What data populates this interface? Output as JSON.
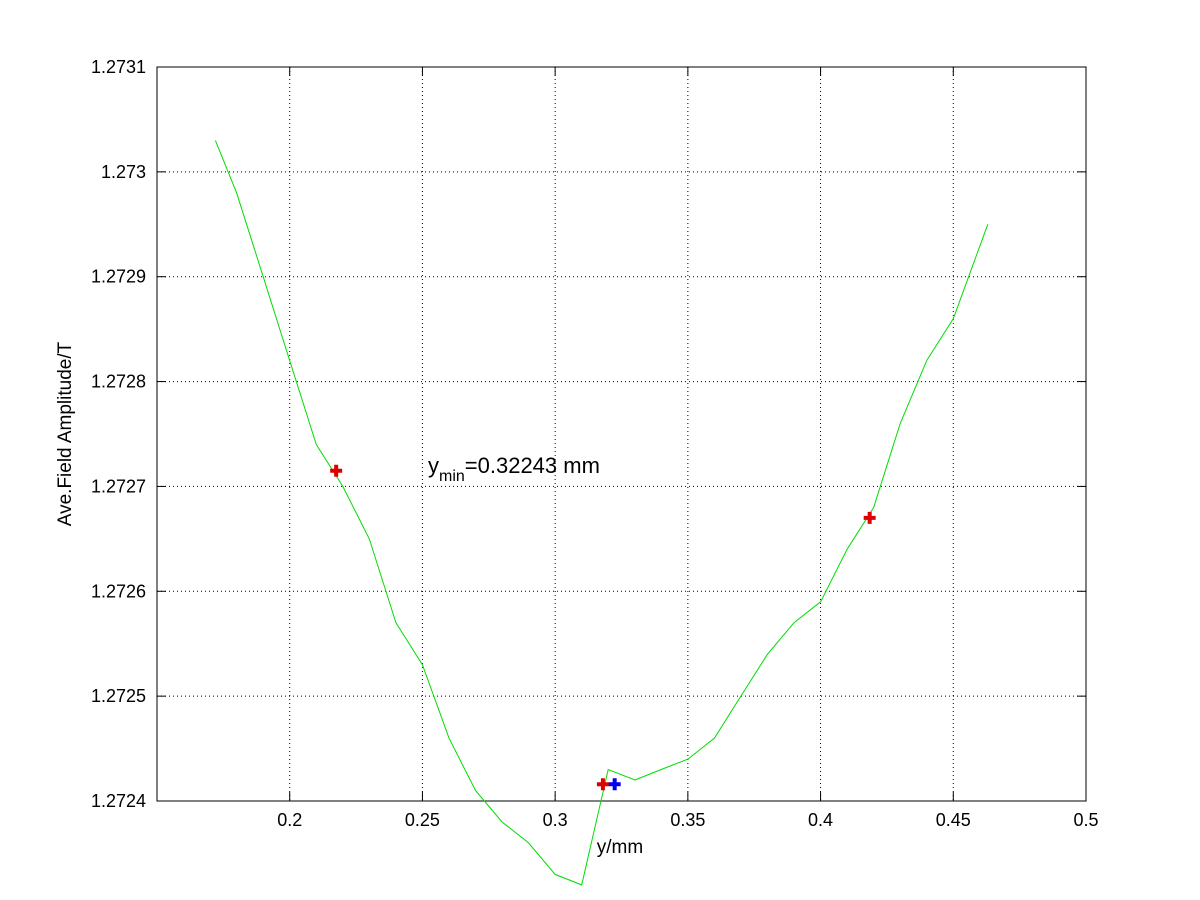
{
  "chart_data": {
    "type": "line",
    "title": "",
    "xlabel": "y/mm",
    "ylabel": "Ave.Field Amplitude/T",
    "xlim": [
      0.15,
      0.5
    ],
    "ylim": [
      1.2724,
      1.2731
    ],
    "xticks": [
      0.2,
      0.25,
      0.3,
      0.35,
      0.4,
      0.45,
      0.5
    ],
    "xtick_labels": [
      "0.2",
      "0.25",
      "0.3",
      "0.35",
      "0.4",
      "0.45",
      "0.5"
    ],
    "yticks": [
      1.2724,
      1.2725,
      1.2726,
      1.2727,
      1.2728,
      1.2729,
      1.273,
      1.2731
    ],
    "ytick_labels": [
      "1.2724",
      "1.2725",
      "1.2726",
      "1.2727",
      "1.2728",
      "1.2729",
      "1.273",
      "1.2731"
    ],
    "grid": true,
    "grid_style": "dotted",
    "series": [
      {
        "kind": "fit-curve",
        "color": "#00dd00",
        "x": [
          0.172,
          0.18,
          0.19,
          0.2,
          0.21,
          0.22,
          0.23,
          0.24,
          0.25,
          0.26,
          0.27,
          0.28,
          0.29,
          0.3,
          0.31,
          0.32,
          0.33,
          0.34,
          0.35,
          0.36,
          0.37,
          0.38,
          0.39,
          0.4,
          0.41,
          0.42,
          0.43,
          0.44,
          0.45,
          0.463
        ],
        "y": [
          1.27303,
          1.27298,
          1.2729,
          1.27282,
          1.27274,
          1.2727,
          1.27265,
          1.27257,
          1.27253,
          1.27246,
          1.27241,
          1.27238,
          1.27236,
          1.27233,
          1.27232,
          1.27243,
          1.27242,
          1.27243,
          1.27244,
          1.27246,
          1.2725,
          1.27254,
          1.27257,
          1.27259,
          1.27264,
          1.27268,
          1.27276,
          1.27282,
          1.27286,
          1.27295
        ]
      },
      {
        "kind": "markers",
        "color": "#dd0000",
        "marker": "plus",
        "x": [
          0.2175,
          0.318,
          0.4185
        ],
        "y": [
          1.272715,
          1.272416,
          1.27267
        ]
      },
      {
        "kind": "markers",
        "color": "#0000ee",
        "marker": "plus",
        "x": [
          0.32243
        ],
        "y": [
          1.272416
        ]
      }
    ],
    "annotation": {
      "base": "y",
      "subscript": "min",
      "rest": "=0.32243 mm",
      "x": 0.2515,
      "y": 1.27271
    }
  }
}
